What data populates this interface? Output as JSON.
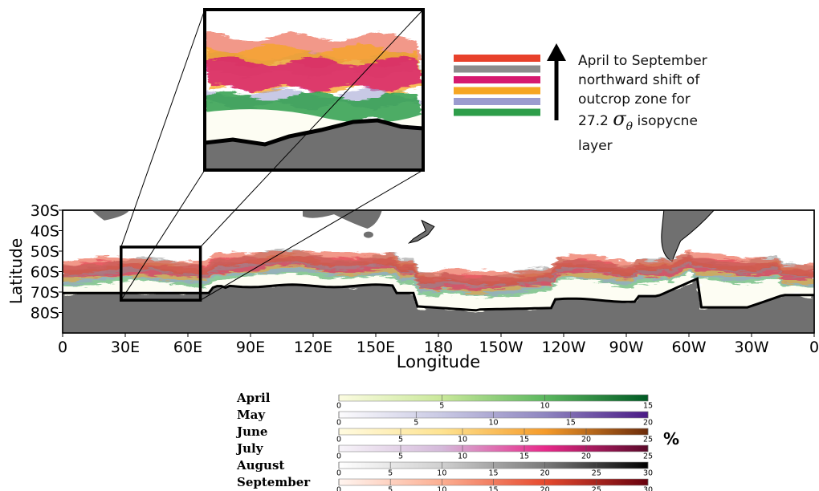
{
  "chart_data": {
    "type": "heatmap",
    "title": "",
    "xlabel": "Longitude",
    "ylabel": "Latitude",
    "x_ticks": [
      "0",
      "30E",
      "60E",
      "90E",
      "120E",
      "150E",
      "180",
      "150W",
      "120W",
      "90W",
      "60W",
      "30W",
      "0"
    ],
    "y_ticks": [
      "30S",
      "40S",
      "50S",
      "60S",
      "70S",
      "80S"
    ],
    "xlim_deg_east": [
      0,
      360
    ],
    "ylim_deg_south": [
      30,
      90
    ],
    "inset_box": {
      "lon_deg_east": [
        28,
        66
      ],
      "lat_deg_south": [
        48,
        74
      ]
    },
    "months": [
      {
        "name": "April",
        "color": "#2e9e4a",
        "unit": "%",
        "max": 15,
        "ticks": [
          0,
          5,
          10,
          15
        ],
        "ramp": [
          "#fbfbe0",
          "#c9e89a",
          "#5cb85f",
          "#005a24"
        ]
      },
      {
        "name": "May",
        "color": "#9b9ccf",
        "unit": "%",
        "max": 20,
        "ticks": [
          0,
          5,
          10,
          15,
          20
        ],
        "ramp": [
          "#fcfbfd",
          "#c9c9e4",
          "#8f86c0",
          "#4a1a86"
        ]
      },
      {
        "name": "June",
        "color": "#f6a623",
        "unit": "%",
        "max": 25,
        "ticks": [
          0,
          5,
          10,
          15,
          20,
          25
        ],
        "ramp": [
          "#fffbe0",
          "#fee391",
          "#f59b2a",
          "#6b2b0a"
        ]
      },
      {
        "name": "July",
        "color": "#d6196f",
        "unit": "%",
        "max": 25,
        "ticks": [
          0,
          5,
          10,
          15,
          20,
          25
        ],
        "ramp": [
          "#f7f4f9",
          "#d4b9da",
          "#e7298a",
          "#5a0a2a"
        ]
      },
      {
        "name": "August",
        "color": "#8c8c8c",
        "unit": "%",
        "max": 30,
        "ticks": [
          0,
          5,
          10,
          15,
          20,
          25,
          30
        ],
        "ramp": [
          "#ffffff",
          "#d0d0d0",
          "#7a7a7a",
          "#000000"
        ]
      },
      {
        "name": "September",
        "color": "#e8412b",
        "unit": "%",
        "max": 30,
        "ticks": [
          0,
          5,
          10,
          15,
          20,
          25,
          30
        ],
        "ramp": [
          "#fff5f0",
          "#fcae91",
          "#e64a2e",
          "#67000d"
        ]
      }
    ],
    "percent_label": "%",
    "annotation": {
      "line1": "April to September",
      "line2": "northward shift of",
      "line3": "outcrop zone for",
      "line4_prefix": "27.2",
      "sigma": "σ",
      "sigma_sub": "θ",
      "line4_suffix": "isopycne",
      "line5": "layer"
    },
    "legend_order_top_to_bottom": [
      "September",
      "August",
      "July",
      "June",
      "May",
      "April"
    ]
  }
}
